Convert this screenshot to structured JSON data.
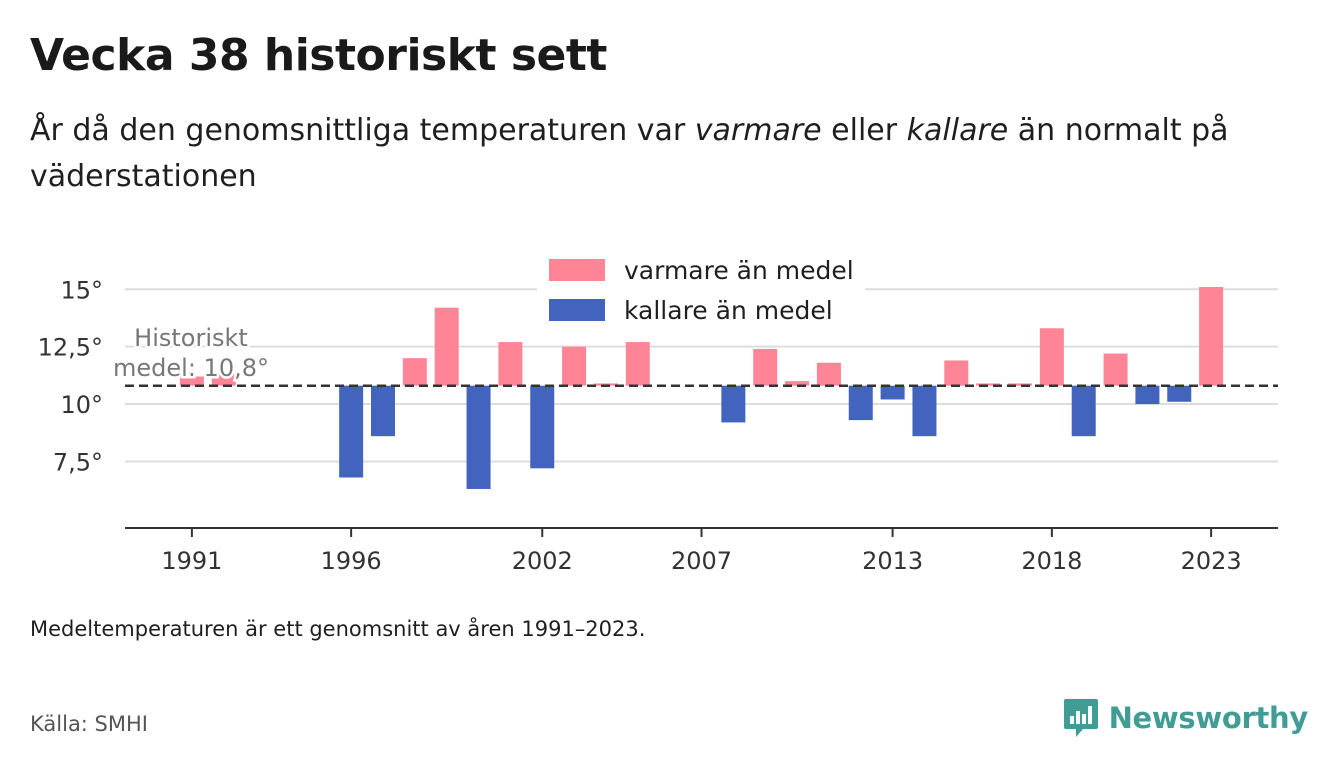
{
  "title": "Vecka 38 historiskt sett",
  "subtitle": {
    "part1": "År då den genomsnittliga temperaturen var ",
    "warm_word": "varmare",
    "part2": " eller ",
    "cold_word": "kallare",
    "part3": " än normalt på väderstationen"
  },
  "note": "Medeltemperaturen är ett genomsnitt av åren 1991–2023.",
  "source": "Källa: SMHI",
  "brand": {
    "name": "Newsworthy",
    "icon": "newsworthy-logo-icon",
    "color": "#3f9d95"
  },
  "colors": {
    "warm": "#ff8596",
    "cold": "#4264be",
    "grid": "#dddddd",
    "axis": "#333333",
    "mean_line": "#333333"
  },
  "chart_data": {
    "type": "bar",
    "x": [
      1991,
      1992,
      1993,
      1994,
      1995,
      1996,
      1997,
      1998,
      1999,
      2000,
      2001,
      2002,
      2003,
      2004,
      2005,
      2006,
      2007,
      2008,
      2009,
      2010,
      2011,
      2012,
      2013,
      2014,
      2015,
      2016,
      2017,
      2018,
      2019,
      2020,
      2021,
      2022,
      2023
    ],
    "values": [
      11.2,
      11.3,
      null,
      null,
      null,
      6.8,
      8.6,
      12.0,
      14.2,
      6.3,
      12.7,
      7.2,
      12.5,
      10.9,
      12.7,
      null,
      null,
      9.2,
      12.4,
      11.0,
      11.8,
      9.3,
      10.2,
      8.6,
      11.9,
      10.9,
      10.9,
      13.3,
      8.6,
      12.2,
      10.0,
      10.1,
      15.1
    ],
    "baseline": 10.8,
    "baseline_label": [
      "Historiskt",
      "medel: 10,8°"
    ],
    "series": [
      {
        "name": "varmare än medel",
        "color": "#ff8596"
      },
      {
        "name": "kallare än medel",
        "color": "#4264be"
      }
    ],
    "x_ticks": [
      1991,
      1996,
      2002,
      2007,
      2013,
      2018,
      2023
    ],
    "y_ticks": [
      7.5,
      10,
      12.5,
      15
    ],
    "y_tick_labels": [
      "7,5°",
      "10°",
      "12,5°",
      "15°"
    ],
    "ylim": [
      4.6,
      15.1
    ],
    "xlim": [
      1988.9,
      2025.1
    ],
    "grid": true,
    "legend_position": "top-center"
  }
}
